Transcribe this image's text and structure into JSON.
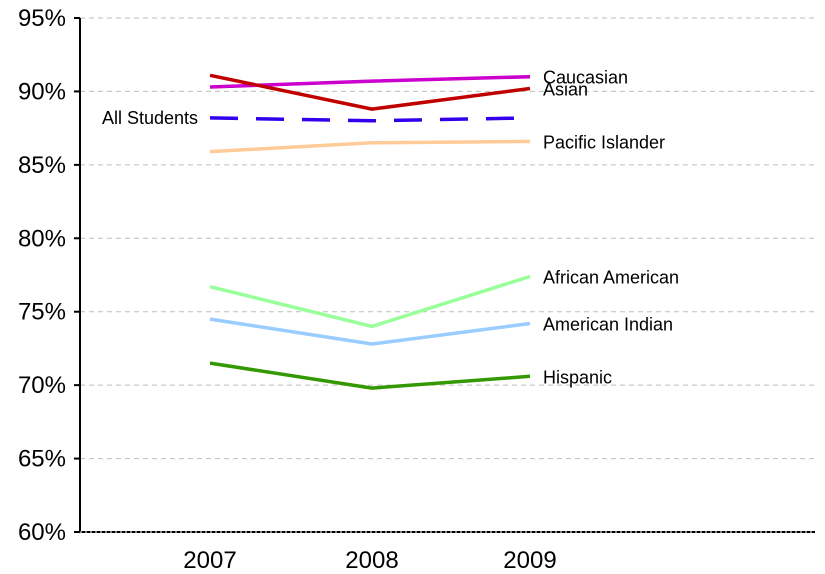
{
  "chart_data": {
    "type": "line",
    "title": "",
    "xlabel": "",
    "ylabel": "",
    "categories": [
      "2007",
      "2008",
      "2009"
    ],
    "ylim": [
      60,
      95
    ],
    "yticks": [
      60,
      65,
      70,
      75,
      80,
      85,
      90,
      95
    ],
    "ytick_labels": [
      "60%",
      "65%",
      "70%",
      "75%",
      "80%",
      "85%",
      "90%",
      "95%"
    ],
    "grid": true,
    "series": [
      {
        "name": "Caucasian",
        "values": [
          90.3,
          90.7,
          91.0
        ],
        "color": "#cc00cc",
        "dashed": false,
        "label_side": "right"
      },
      {
        "name": "Asian",
        "values": [
          91.1,
          88.8,
          90.2
        ],
        "color": "#c00000",
        "dashed": false,
        "label_side": "right"
      },
      {
        "name": "All Students",
        "values": [
          88.2,
          88.0,
          88.2
        ],
        "color": "#3300ee",
        "dashed": true,
        "label_side": "left"
      },
      {
        "name": "Pacific Islander",
        "values": [
          85.9,
          86.5,
          86.6
        ],
        "color": "#ffcc99",
        "dashed": false,
        "label_side": "right"
      },
      {
        "name": "African American",
        "values": [
          76.7,
          74.0,
          77.4
        ],
        "color": "#99ff99",
        "dashed": false,
        "label_side": "right"
      },
      {
        "name": "American Indian",
        "values": [
          74.5,
          72.8,
          74.2
        ],
        "color": "#99ccff",
        "dashed": false,
        "label_side": "right"
      },
      {
        "name": "Hispanic",
        "values": [
          71.5,
          69.8,
          70.6
        ],
        "color": "#339900",
        "dashed": false,
        "label_side": "right"
      }
    ]
  }
}
